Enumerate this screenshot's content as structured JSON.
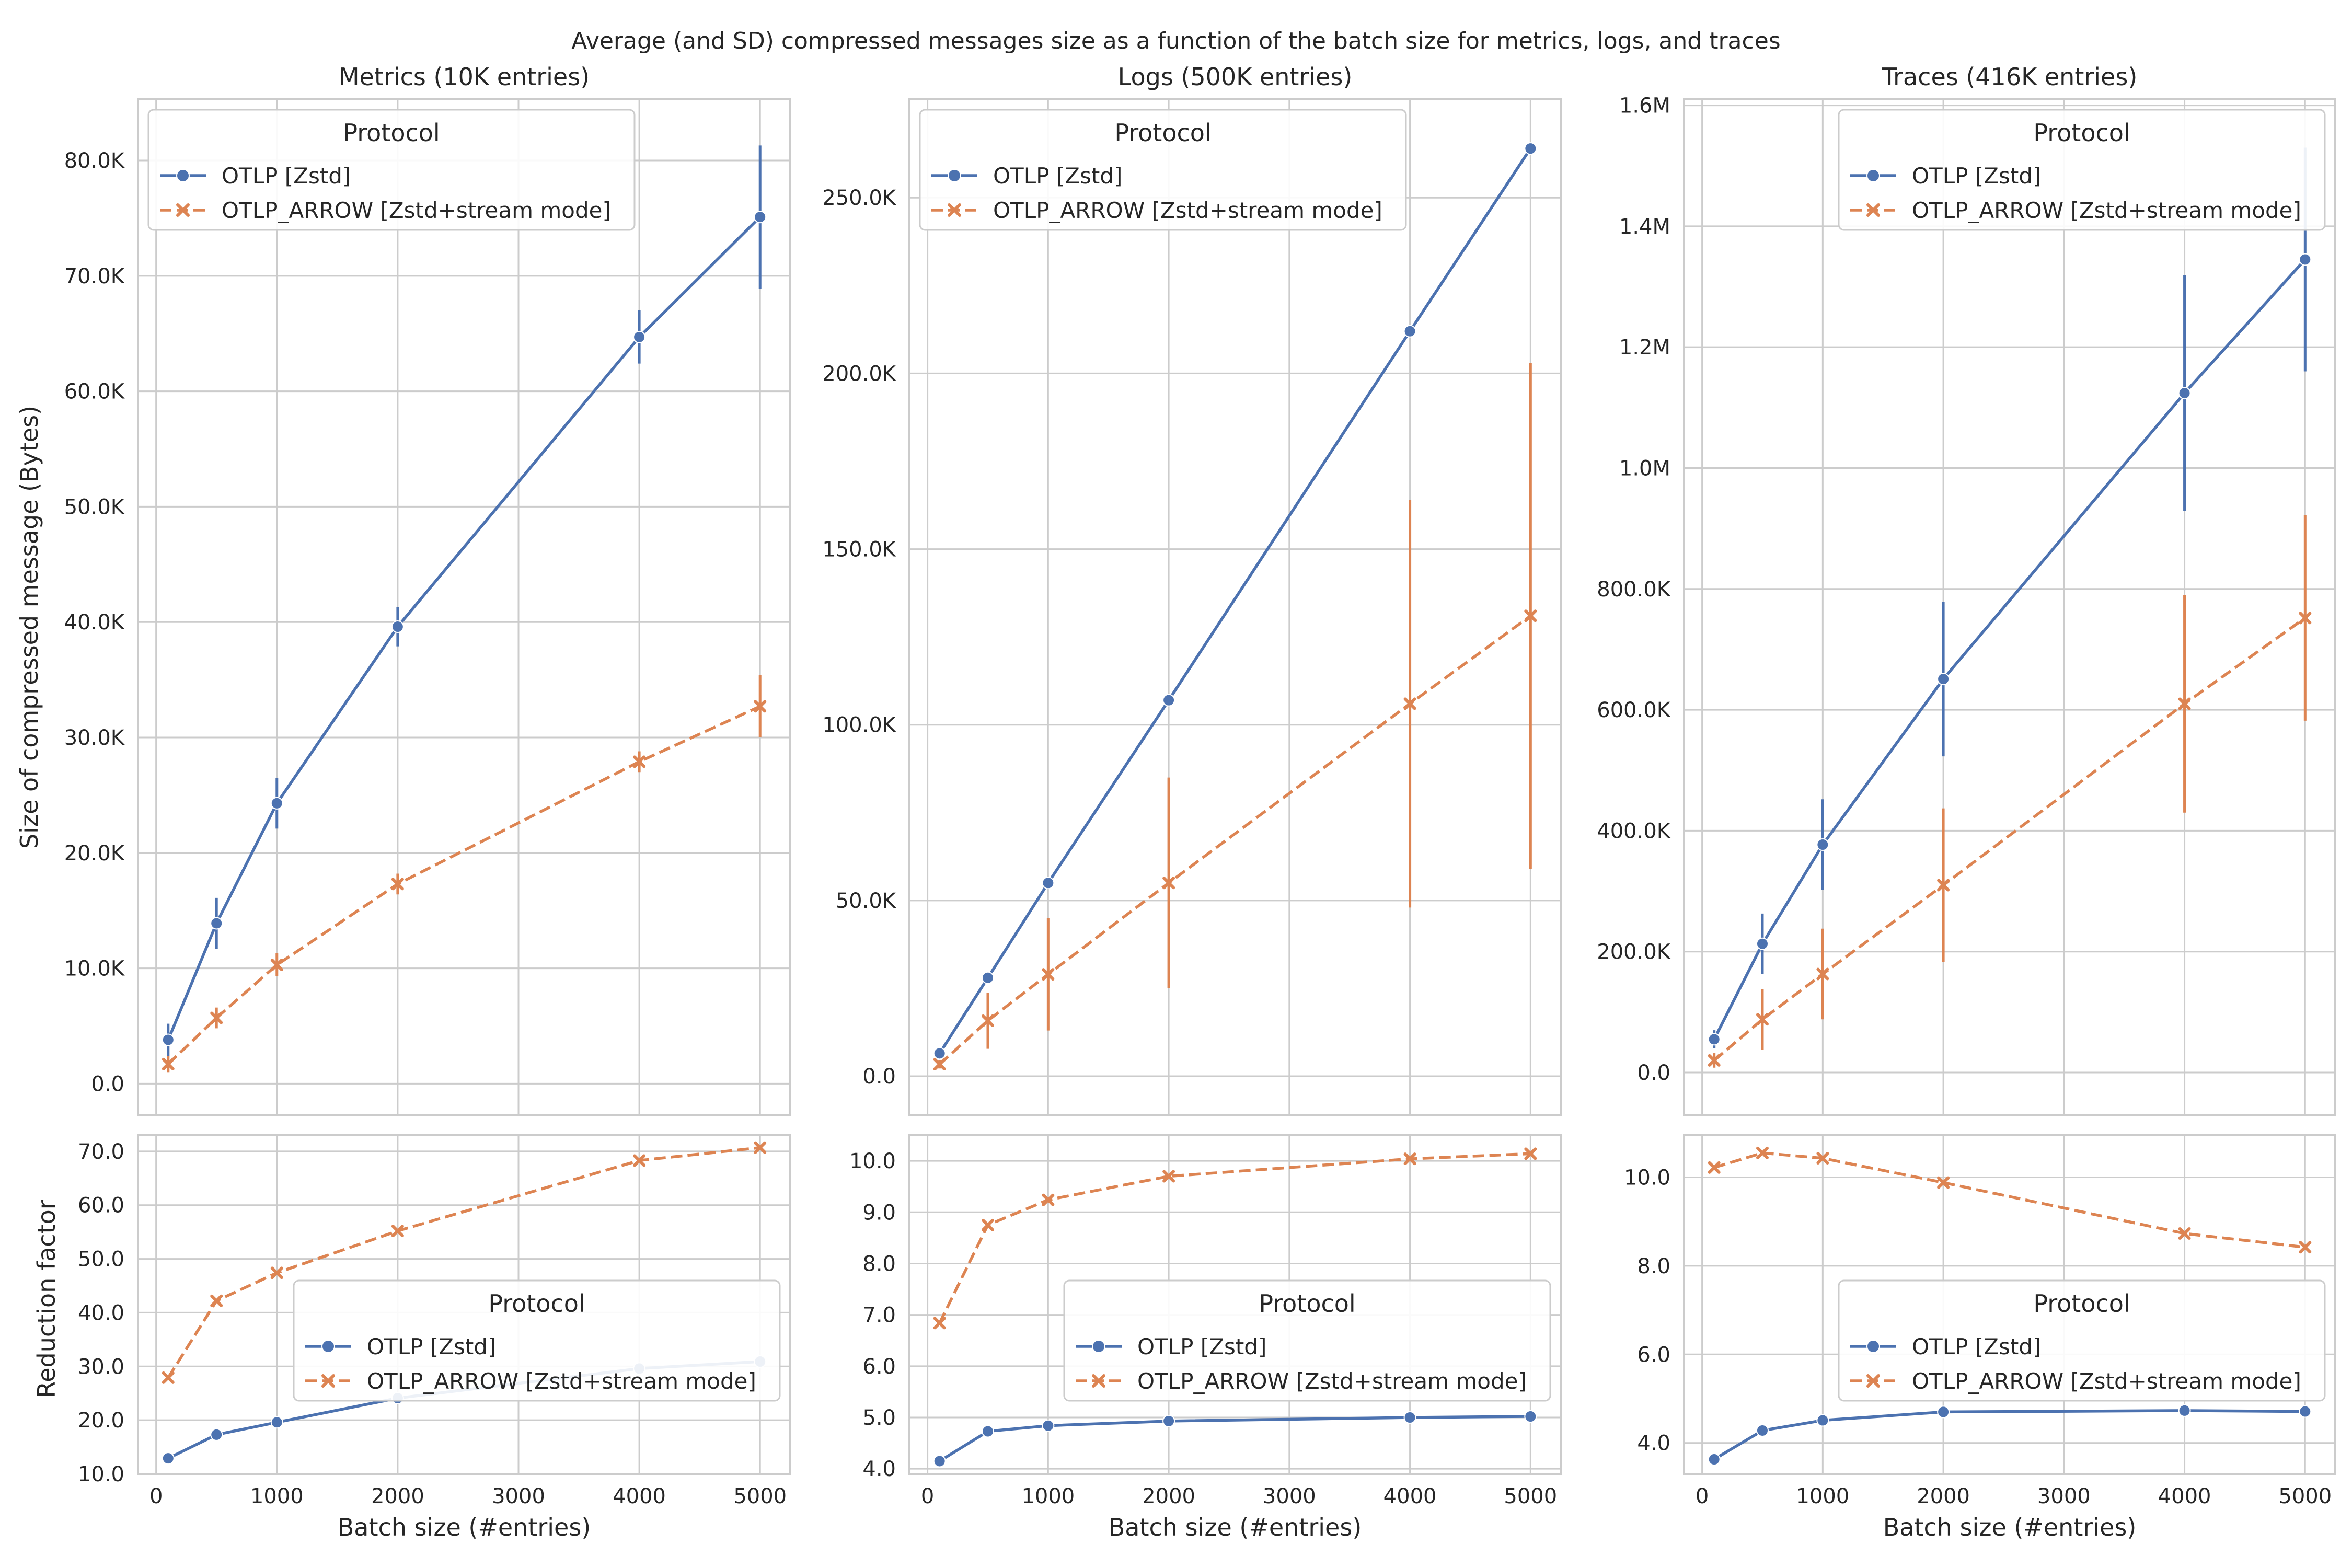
{
  "suptitle": "Average (and SD) compressed messages size as a function of the batch size for metrics, logs, and traces",
  "ylabel_top": "Size of compressed message (Bytes)",
  "ylabel_bottom": "Reduction factor",
  "xlabel": "Batch size (#entries)",
  "legend": {
    "title": "Protocol",
    "labels": [
      "OTLP [Zstd]",
      "OTLP_ARROW [Zstd+stream mode]"
    ]
  },
  "colors": {
    "otlp": "#4c72b0",
    "arrow": "#dd8452",
    "grid": "#cccccc",
    "spine": "#cccccc",
    "background": "#ffffff"
  },
  "chart_data": [
    {
      "id": "metrics-size",
      "type": "line",
      "title": "Metrics (10K entries)",
      "x": [
        100,
        500,
        1000,
        2000,
        4000,
        5000
      ],
      "xlim": [
        -150,
        5250
      ],
      "xticks": [
        0,
        1000,
        2000,
        3000,
        4000,
        5000
      ],
      "ylim": [
        -2700,
        85300
      ],
      "yticks": [
        0,
        10000,
        20000,
        30000,
        40000,
        50000,
        60000,
        70000,
        80000
      ],
      "ytick_labels": [
        "0.0",
        "10.0K",
        "20.0K",
        "30.0K",
        "40.0K",
        "50.0K",
        "60.0K",
        "70.0K",
        "80.0K"
      ],
      "legend_position": "upper left",
      "series": [
        {
          "name": "OTLP [Zstd]",
          "values": [
            3800,
            13900,
            24300,
            39600,
            64700,
            75100
          ],
          "sd": [
            1400,
            2200,
            2200,
            1700,
            2300,
            6200
          ]
        },
        {
          "name": "OTLP_ARROW [Zstd+stream mode]",
          "values": [
            1700,
            5700,
            10300,
            17300,
            27900,
            32700
          ],
          "sd": [
            700,
            900,
            1000,
            900,
            900,
            2700
          ]
        }
      ]
    },
    {
      "id": "logs-size",
      "type": "line",
      "title": "Logs (500K entries)",
      "x": [
        100,
        500,
        1000,
        2000,
        4000,
        5000
      ],
      "xlim": [
        -150,
        5250
      ],
      "xticks": [
        0,
        1000,
        2000,
        3000,
        4000,
        5000
      ],
      "ylim": [
        -11000,
        278000
      ],
      "yticks": [
        0,
        50000,
        100000,
        150000,
        200000,
        250000
      ],
      "ytick_labels": [
        "0.0",
        "50.0K",
        "100.0K",
        "150.0K",
        "200.0K",
        "250.0K"
      ],
      "legend_position": "upper left",
      "series": [
        {
          "name": "OTLP [Zstd]",
          "values": [
            6500,
            28000,
            55000,
            107000,
            212000,
            264000
          ],
          "sd": [
            0,
            0,
            0,
            0,
            0,
            0
          ]
        },
        {
          "name": "OTLP_ARROW [Zstd+stream mode]",
          "values": [
            3400,
            15800,
            29000,
            55000,
            106000,
            131000
          ],
          "sd": [
            1200,
            8000,
            16000,
            30000,
            58000,
            72000
          ]
        }
      ]
    },
    {
      "id": "traces-size",
      "type": "line",
      "title": "Traces (416K entries)",
      "x": [
        100,
        500,
        1000,
        2000,
        4000,
        5000
      ],
      "xlim": [
        -150,
        5250
      ],
      "xticks": [
        0,
        1000,
        2000,
        3000,
        4000,
        5000
      ],
      "ylim": [
        -70000,
        1610000
      ],
      "yticks": [
        0,
        200000,
        400000,
        600000,
        800000,
        1000000,
        1200000,
        1400000,
        1600000
      ],
      "ytick_labels": [
        "0.0",
        "200.0K",
        "400.0K",
        "600.0K",
        "800.0K",
        "1.0M",
        "1.2M",
        "1.4M",
        "1.6M"
      ],
      "legend_position": "upper right",
      "series": [
        {
          "name": "OTLP [Zstd]",
          "values": [
            55000,
            213000,
            377000,
            651000,
            1124000,
            1345000
          ],
          "sd": [
            15000,
            50000,
            75000,
            128000,
            195000,
            185000
          ]
        },
        {
          "name": "OTLP_ARROW [Zstd+stream mode]",
          "values": [
            20000,
            88000,
            163000,
            310000,
            610000,
            752000
          ],
          "sd": [
            12000,
            50000,
            75000,
            127000,
            180000,
            170000
          ]
        }
      ]
    },
    {
      "id": "metrics-reduction",
      "type": "line",
      "x": [
        100,
        500,
        1000,
        2000,
        4000,
        5000
      ],
      "xlim": [
        -150,
        5250
      ],
      "xticks": [
        0,
        1000,
        2000,
        3000,
        4000,
        5000
      ],
      "ylim": [
        10,
        73
      ],
      "yticks": [
        10,
        20,
        30,
        40,
        50,
        60,
        70
      ],
      "ytick_labels": [
        "10.0",
        "20.0",
        "30.0",
        "40.0",
        "50.0",
        "60.0",
        "70.0"
      ],
      "legend_position": "lower right",
      "series": [
        {
          "name": "OTLP [Zstd]",
          "values": [
            12.9,
            17.3,
            19.6,
            24.1,
            29.6,
            30.9
          ]
        },
        {
          "name": "OTLP_ARROW [Zstd+stream mode]",
          "values": [
            27.9,
            42.2,
            47.4,
            55.2,
            68.3,
            70.7
          ]
        }
      ]
    },
    {
      "id": "logs-reduction",
      "type": "line",
      "x": [
        100,
        500,
        1000,
        2000,
        4000,
        5000
      ],
      "xlim": [
        -150,
        5250
      ],
      "xticks": [
        0,
        1000,
        2000,
        3000,
        4000,
        5000
      ],
      "ylim": [
        3.9,
        10.5
      ],
      "yticks": [
        4,
        5,
        6,
        7,
        8,
        9,
        10
      ],
      "ytick_labels": [
        "4.0",
        "5.0",
        "6.0",
        "7.0",
        "8.0",
        "9.0",
        "10.0"
      ],
      "legend_position": "lower right",
      "series": [
        {
          "name": "OTLP [Zstd]",
          "values": [
            4.15,
            4.73,
            4.84,
            4.93,
            5.0,
            5.02
          ]
        },
        {
          "name": "OTLP_ARROW [Zstd+stream mode]",
          "values": [
            6.84,
            8.75,
            9.24,
            9.7,
            10.04,
            10.14
          ]
        }
      ]
    },
    {
      "id": "traces-reduction",
      "type": "line",
      "x": [
        100,
        500,
        1000,
        2000,
        4000,
        5000
      ],
      "xlim": [
        -150,
        5250
      ],
      "xticks": [
        0,
        1000,
        2000,
        3000,
        4000,
        5000
      ],
      "ylim": [
        3.3,
        10.95
      ],
      "yticks": [
        4,
        6,
        8,
        10
      ],
      "ytick_labels": [
        "4.0",
        "6.0",
        "8.0",
        "10.0"
      ],
      "legend_position": "lower right",
      "series": [
        {
          "name": "OTLP [Zstd]",
          "values": [
            3.63,
            4.28,
            4.51,
            4.7,
            4.73,
            4.71
          ]
        },
        {
          "name": "OTLP_ARROW [Zstd+stream mode]",
          "values": [
            10.22,
            10.55,
            10.43,
            9.88,
            8.73,
            8.42
          ]
        }
      ]
    }
  ]
}
